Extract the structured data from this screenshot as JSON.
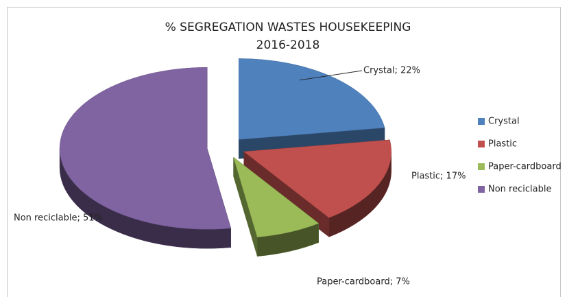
{
  "chart_data": {
    "type": "pie3d",
    "title": "% SEGREGATION WASTES HOUSEKEEPING",
    "subtitle": "2016-2018",
    "categories": [
      "Crystal",
      "Plastic",
      "Paper-cardboard",
      "Non reciclable"
    ],
    "values": [
      22,
      17,
      7,
      51
    ],
    "value_labels": [
      "Crystal; 22%",
      "Plastic; 17%",
      "Paper-cardboard; 7%",
      "Non reciclable; 51%"
    ],
    "colors": [
      "#4f81bd",
      "#c0504d",
      "#9bbb59",
      "#8064a2"
    ],
    "legend": "right"
  }
}
